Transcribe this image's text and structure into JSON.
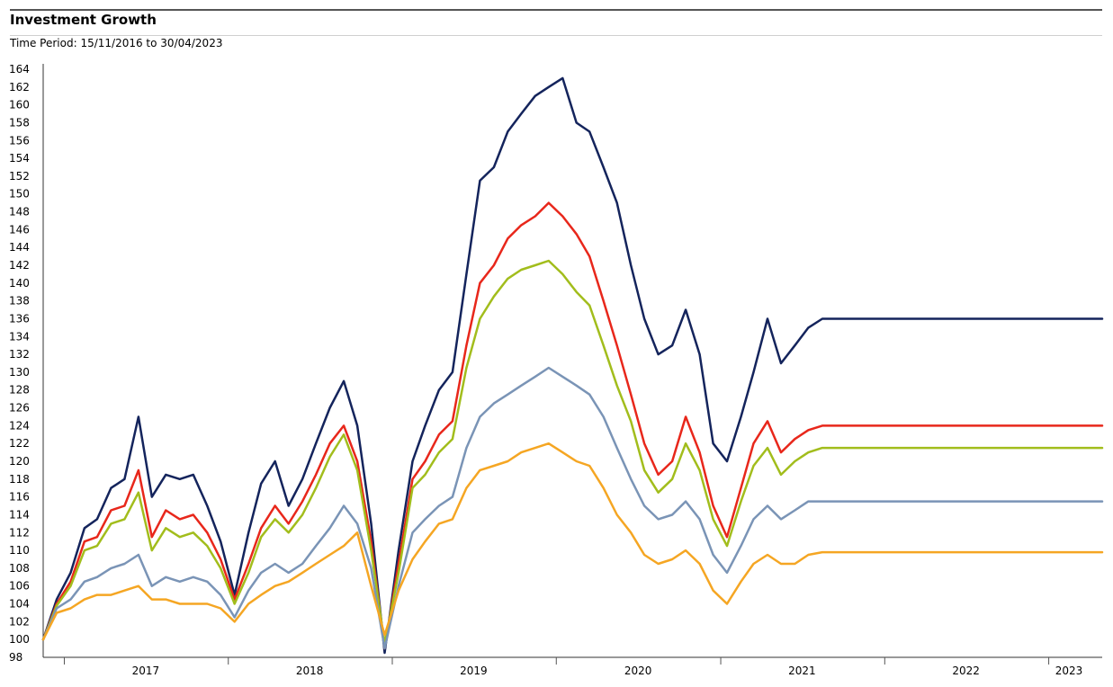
{
  "header": {
    "title": "Investment Growth",
    "subtitle": "Time Period: 15/11/2016 to 30/04/2023"
  },
  "chart_data": {
    "type": "line",
    "title": "Investment Growth",
    "subtitle": "Time Period: 15/11/2016 to 30/04/2023",
    "xlabel": "",
    "ylabel": "",
    "ylim": [
      98,
      164
    ],
    "yticks": [
      98,
      100,
      102,
      104,
      106,
      108,
      110,
      112,
      114,
      116,
      118,
      120,
      122,
      124,
      126,
      128,
      130,
      132,
      134,
      136,
      138,
      140,
      142,
      144,
      146,
      148,
      150,
      152,
      154,
      156,
      158,
      160,
      162,
      164
    ],
    "xlim": [
      "2016-11-15",
      "2023-04-30"
    ],
    "xticks": [
      {
        "label": "2017",
        "date": "2017-07-01"
      },
      {
        "label": "2018",
        "date": "2018-07-01"
      },
      {
        "label": "2019",
        "date": "2019-07-01"
      },
      {
        "label": "2020",
        "date": "2020-07-01"
      },
      {
        "label": "2021",
        "date": "2021-07-01"
      },
      {
        "label": "2022",
        "date": "2022-07-01"
      },
      {
        "label": "2023",
        "date": "2023-02-15"
      }
    ],
    "year_boundaries": [
      "2017-01-01",
      "2018-01-01",
      "2019-01-01",
      "2020-01-01",
      "2021-01-01",
      "2022-01-01",
      "2023-01-01"
    ],
    "grid": false,
    "legend": "none",
    "x": [
      "2016-11-15",
      "2016-12-15",
      "2017-01-15",
      "2017-02-15",
      "2017-03-15",
      "2017-04-15",
      "2017-05-15",
      "2017-06-15",
      "2017-07-15",
      "2017-08-15",
      "2017-09-15",
      "2017-10-15",
      "2017-11-15",
      "2017-12-15",
      "2018-01-15",
      "2018-02-15",
      "2018-03-15",
      "2018-04-15",
      "2018-05-15",
      "2018-06-15",
      "2018-07-15",
      "2018-08-15",
      "2018-09-15",
      "2018-10-15",
      "2018-11-15",
      "2018-12-15",
      "2019-01-15",
      "2019-02-15",
      "2019-03-15",
      "2019-04-15",
      "2019-05-15",
      "2019-06-15",
      "2019-07-15",
      "2019-08-15",
      "2019-09-15",
      "2019-10-15",
      "2019-11-15",
      "2019-12-15",
      "2020-01-15",
      "2020-02-15",
      "2020-03-15",
      "2020-04-15",
      "2020-05-15",
      "2020-06-15",
      "2020-07-15",
      "2020-08-15",
      "2020-09-15",
      "2020-10-15",
      "2020-11-15",
      "2020-12-15",
      "2021-01-15",
      "2021-02-15",
      "2021-03-15",
      "2021-04-15",
      "2021-05-15",
      "2021-06-15",
      "2021-07-15",
      "2021-08-15",
      "2021-09-15",
      "2021-10-15",
      "2021-11-15",
      "2021-12-15",
      "2022-01-15",
      "2022-02-15",
      "2022-03-15",
      "2022-04-15",
      "2022-05-15",
      "2022-06-15",
      "2022-07-15",
      "2022-08-15",
      "2022-09-15",
      "2022-10-15",
      "2022-11-15",
      "2022-12-15",
      "2023-01-15",
      "2023-02-15",
      "2023-03-15",
      "2023-04-30"
    ],
    "series": [
      {
        "color": "#14245c",
        "values": [
          100,
          104.5,
          107.5,
          112.5,
          113.5,
          117,
          118,
          125,
          116,
          118.5,
          118,
          118.5,
          115,
          111,
          105,
          112,
          117.5,
          120,
          115,
          118,
          122,
          126,
          129,
          124,
          113,
          98.5,
          110,
          120,
          124,
          128,
          130,
          141,
          151.5,
          153,
          157,
          159,
          161,
          162,
          163,
          158,
          157,
          153,
          149,
          142,
          136,
          132,
          133,
          137,
          132,
          122,
          120,
          125,
          130,
          136,
          131,
          133,
          135,
          136,
          136,
          136,
          136,
          136,
          136,
          136,
          136,
          136,
          136,
          136,
          136,
          136,
          136,
          136,
          136,
          136,
          136,
          136,
          136,
          136
        ]
      },
      {
        "color": "#e8271b",
        "values": [
          100,
          104,
          106.5,
          111,
          111.5,
          114.5,
          115,
          119,
          111.5,
          114.5,
          113.5,
          114,
          112,
          109,
          104.5,
          108.5,
          112.5,
          115,
          113,
          115.5,
          118.5,
          122,
          124,
          120,
          111,
          99,
          108.5,
          118,
          120,
          123,
          124.5,
          133,
          140,
          142,
          145,
          146.5,
          147.5,
          149,
          147.5,
          145.5,
          143,
          138,
          133,
          127.5,
          122,
          118.5,
          120,
          125,
          121,
          115,
          111.5,
          117,
          122,
          124.5,
          121,
          122.5,
          123.5,
          124,
          124,
          124,
          124,
          124,
          124,
          124,
          124,
          124,
          124,
          124,
          124,
          124,
          124,
          124,
          124,
          124,
          124,
          124,
          124,
          124
        ]
      },
      {
        "color": "#a2bd1c",
        "values": [
          100,
          103.8,
          106,
          110,
          110.5,
          113,
          113.5,
          116.5,
          110,
          112.5,
          111.5,
          112,
          110.5,
          108,
          104,
          107.5,
          111.5,
          113.5,
          112,
          114,
          117,
          120.5,
          123,
          119,
          110,
          99.5,
          107.5,
          117,
          118.5,
          121,
          122.5,
          130.5,
          136,
          138.5,
          140.5,
          141.5,
          142,
          142.5,
          141,
          139,
          137.5,
          133,
          128.5,
          124.5,
          119,
          116.5,
          118,
          122,
          119,
          113.5,
          110.5,
          115.5,
          119.5,
          121.5,
          118.5,
          120,
          121,
          121.5,
          121.5,
          121.5,
          121.5,
          121.5,
          121.5,
          121.5,
          121.5,
          121.5,
          121.5,
          121.5,
          121.5,
          121.5,
          121.5,
          121.5,
          121.5,
          121.5,
          121.5,
          121.5,
          121.5,
          121.5
        ]
      },
      {
        "color": "#7a94b6",
        "values": [
          100,
          103.5,
          104.5,
          106.5,
          107,
          108,
          108.5,
          109.5,
          106,
          107,
          106.5,
          107,
          106.5,
          105,
          102.5,
          105.5,
          107.5,
          108.5,
          107.5,
          108.5,
          110.5,
          112.5,
          115,
          113,
          108,
          99,
          106,
          112,
          113.5,
          115,
          116,
          121.5,
          125,
          126.5,
          127.5,
          128.5,
          129.5,
          130.5,
          129.5,
          128.5,
          127.5,
          125,
          121.5,
          118,
          115,
          113.5,
          114,
          115.5,
          113.5,
          109.5,
          107.5,
          110.5,
          113.5,
          115,
          113.5,
          114.5,
          115.5,
          115.5,
          115.5,
          115.5,
          115.5,
          115.5,
          115.5,
          115.5,
          115.5,
          115.5,
          115.5,
          115.5,
          115.5,
          115.5,
          115.5,
          115.5,
          115.5,
          115.5,
          115.5,
          115.5,
          115.5,
          115.5
        ]
      },
      {
        "color": "#f5a623",
        "values": [
          100,
          103,
          103.5,
          104.5,
          105,
          105,
          105.5,
          106,
          104.5,
          104.5,
          104,
          104,
          104,
          103.5,
          102,
          104,
          105,
          106,
          106.5,
          107.5,
          108.5,
          109.5,
          110.5,
          112,
          106,
          100.5,
          105.5,
          109,
          111,
          113,
          113.5,
          117,
          119,
          119.5,
          120,
          121,
          121.5,
          122,
          121,
          120,
          119.5,
          117,
          114,
          112,
          109.5,
          108.5,
          109,
          110,
          108.5,
          105.5,
          104,
          106.5,
          108.5,
          109.5,
          108.5,
          108.5,
          109.5,
          109.8,
          109.8,
          109.8,
          109.8,
          109.8,
          109.8,
          109.8,
          109.8,
          109.8,
          109.8,
          109.8,
          109.8,
          109.8,
          109.8,
          109.8,
          109.8,
          109.8,
          109.8,
          109.8,
          109.8,
          109.8
        ]
      }
    ]
  }
}
